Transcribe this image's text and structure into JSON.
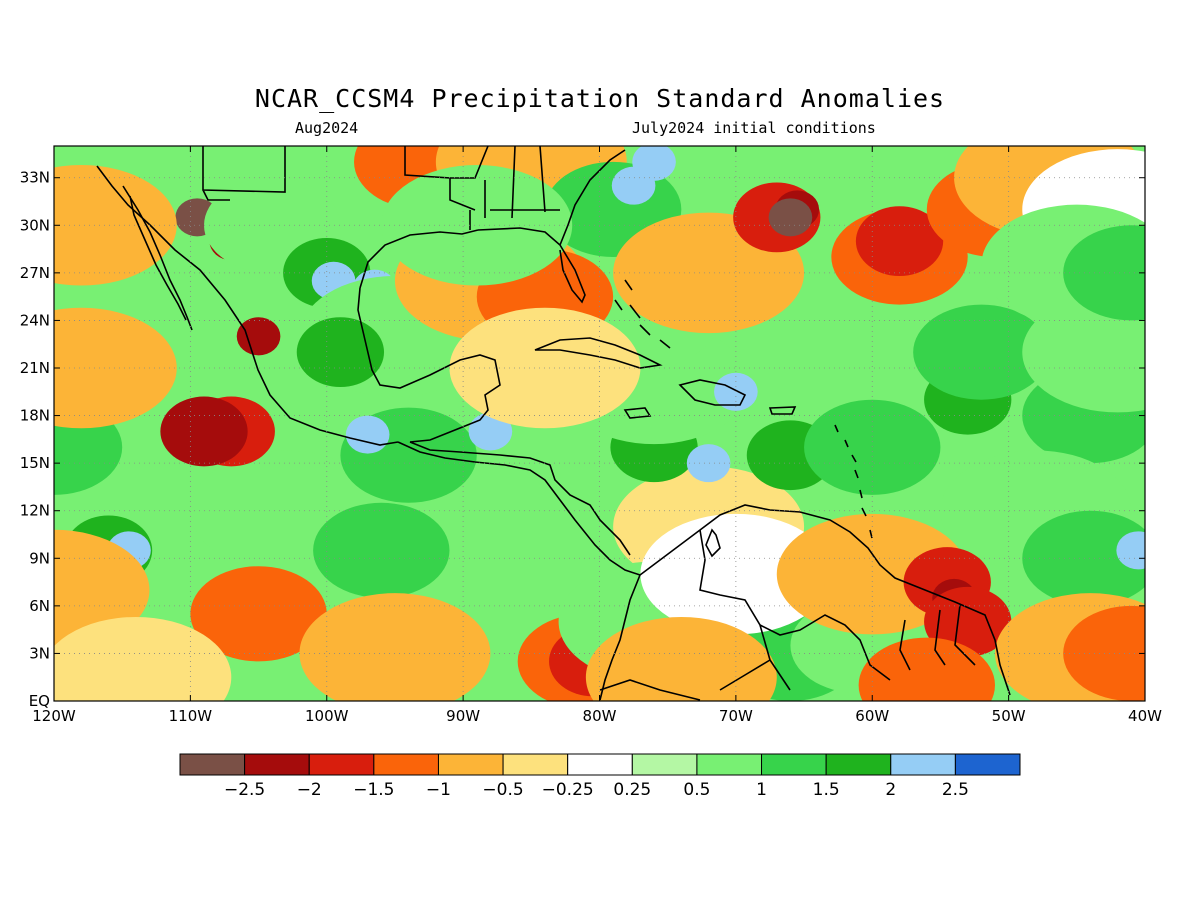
{
  "title": "NCAR_CCSM4 Precipitation Standard Anomalies",
  "subtitle_left": "Aug2024",
  "subtitle_right": "July2024 initial conditions",
  "map": {
    "lon_range": [
      -120,
      -40
    ],
    "lat_range": [
      0,
      35
    ],
    "lat_ticks": [
      {
        "lat": 33,
        "label": "33N"
      },
      {
        "lat": 30,
        "label": "30N"
      },
      {
        "lat": 27,
        "label": "27N"
      },
      {
        "lat": 24,
        "label": "24N"
      },
      {
        "lat": 21,
        "label": "21N"
      },
      {
        "lat": 18,
        "label": "18N"
      },
      {
        "lat": 15,
        "label": "15N"
      },
      {
        "lat": 12,
        "label": "12N"
      },
      {
        "lat": 9,
        "label": "9N"
      },
      {
        "lat": 6,
        "label": "6N"
      },
      {
        "lat": 3,
        "label": "3N"
      },
      {
        "lat": 0,
        "label": "EQ"
      }
    ],
    "lon_ticks": [
      {
        "lon": -120,
        "label": "120W"
      },
      {
        "lon": -110,
        "label": "110W"
      },
      {
        "lon": -100,
        "label": "100W"
      },
      {
        "lon": -90,
        "label": "90W"
      },
      {
        "lon": -80,
        "label": "80W"
      },
      {
        "lon": -70,
        "label": "70W"
      },
      {
        "lon": -60,
        "label": "60W"
      },
      {
        "lon": -50,
        "label": "50W"
      },
      {
        "lon": -40,
        "label": "40W"
      }
    ],
    "grid": "dotted",
    "anomaly_regions": [
      {
        "lon": -72,
        "lat": 11,
        "level": -0.3
      },
      {
        "lon": -120,
        "lat": 16,
        "level": 1.2
      },
      {
        "lon": -116,
        "lat": 9.5,
        "level": 1.6
      },
      {
        "lon": -114.5,
        "lat": 9.5,
        "level": 2.3
      },
      {
        "lon": -103,
        "lat": 12,
        "level": 0.9
      },
      {
        "lon": -96,
        "lat": 9.5,
        "level": 1.4
      },
      {
        "lon": -120,
        "lat": 7,
        "level": -0.9
      },
      {
        "lon": -105,
        "lat": 5.5,
        "level": -1.1
      },
      {
        "lon": -114,
        "lat": 1.5,
        "level": -0.4
      },
      {
        "lon": -95,
        "lat": 3,
        "level": -0.7
      },
      {
        "lon": -81,
        "lat": 2.5,
        "level": -1.3
      },
      {
        "lon": -80.5,
        "lat": 2.5,
        "level": -1.7
      },
      {
        "lon": -94,
        "lat": 15.5,
        "level": 1.3
      },
      {
        "lon": -97,
        "lat": 16.8,
        "level": 2.3
      },
      {
        "lon": -88,
        "lat": 17,
        "level": 2.2
      },
      {
        "lon": -76,
        "lat": 16,
        "level": 1.7
      },
      {
        "lon": -72,
        "lat": 15,
        "level": 2.3
      },
      {
        "lon": -66,
        "lat": 15.5,
        "level": 1.6
      },
      {
        "lon": -60,
        "lat": 16,
        "level": 1.3
      },
      {
        "lon": -53,
        "lat": 19,
        "level": 1.6
      },
      {
        "lon": -44,
        "lat": 18,
        "level": 1.2
      },
      {
        "lon": -76,
        "lat": 20,
        "level": 0.9
      },
      {
        "lon": -70,
        "lat": 19.5,
        "level": 2.2
      },
      {
        "lon": -78,
        "lat": 24.5,
        "level": 0.7
      },
      {
        "lon": -52,
        "lat": 22,
        "level": 1.1
      },
      {
        "lon": -42,
        "lat": 22,
        "level": 0.7
      },
      {
        "lon": -48,
        "lat": 12,
        "level": 0.9
      },
      {
        "lon": -44,
        "lat": 9,
        "level": 1.3
      },
      {
        "lon": -40.5,
        "lat": 9.5,
        "level": 2.3
      },
      {
        "lon": -76,
        "lat": 5,
        "level": 0.8
      },
      {
        "lon": -66,
        "lat": 3,
        "level": 1.2
      },
      {
        "lon": -61,
        "lat": 3.5,
        "level": 1.0
      },
      {
        "lon": -70,
        "lat": 8,
        "level": 0.1
      },
      {
        "lon": -60,
        "lat": 8,
        "level": -0.9
      },
      {
        "lon": -54.5,
        "lat": 7.5,
        "level": -1.9
      },
      {
        "lon": -54,
        "lat": 6.5,
        "level": -2.3
      },
      {
        "lon": -53,
        "lat": 5,
        "level": -1.5
      },
      {
        "lon": -56,
        "lat": 1,
        "level": -1.0
      },
      {
        "lon": -44,
        "lat": 3,
        "level": -0.8
      },
      {
        "lon": -41,
        "lat": 3,
        "level": -1.1
      },
      {
        "lon": -74,
        "lat": 1.5,
        "level": -0.7
      },
      {
        "lon": -107,
        "lat": 29,
        "level": -2.4
      },
      {
        "lon": -109.5,
        "lat": 30.5,
        "level": -2.5
      },
      {
        "lon": -105,
        "lat": 23,
        "level": -2.3
      },
      {
        "lon": -107,
        "lat": 17,
        "level": -1.6
      },
      {
        "lon": -109,
        "lat": 17,
        "level": -2.0
      },
      {
        "lon": -118,
        "lat": 21,
        "level": -0.6
      },
      {
        "lon": -118,
        "lat": 30,
        "level": -0.5
      },
      {
        "lon": -104,
        "lat": 30,
        "level": 1.0
      },
      {
        "lon": -100,
        "lat": 27,
        "level": 1.6
      },
      {
        "lon": -99.5,
        "lat": 26.5,
        "level": 2.5
      },
      {
        "lon": -96.5,
        "lat": 26,
        "level": 2.2
      },
      {
        "lon": -95,
        "lat": 23,
        "level": 0.9
      },
      {
        "lon": -99,
        "lat": 22,
        "level": 1.8
      },
      {
        "lon": -88,
        "lat": 26.5,
        "level": -0.6
      },
      {
        "lon": -84,
        "lat": 25.5,
        "level": -1.2
      },
      {
        "lon": -93,
        "lat": 34,
        "level": -1.0
      },
      {
        "lon": -85,
        "lat": 34,
        "level": -0.8
      },
      {
        "lon": -84,
        "lat": 21,
        "level": -0.4
      },
      {
        "lon": -79,
        "lat": 31,
        "level": 1.2
      },
      {
        "lon": -77.5,
        "lat": 32.5,
        "level": 2.2
      },
      {
        "lon": -76,
        "lat": 34,
        "level": 2.5
      },
      {
        "lon": -89,
        "lat": 30,
        "level": 0.6
      },
      {
        "lon": -72,
        "lat": 27,
        "level": -0.6
      },
      {
        "lon": -67,
        "lat": 30.5,
        "level": -1.6
      },
      {
        "lon": -65.5,
        "lat": 31,
        "level": -2.1
      },
      {
        "lon": -66,
        "lat": 30.5,
        "level": -2.5
      },
      {
        "lon": -58,
        "lat": 28,
        "level": -1.3
      },
      {
        "lon": -58,
        "lat": 29,
        "level": -1.7
      },
      {
        "lon": -51,
        "lat": 31,
        "level": -1.3
      },
      {
        "lon": -49.5,
        "lat": 32,
        "level": -1.6
      },
      {
        "lon": -47,
        "lat": 33,
        "level": -0.5
      },
      {
        "lon": -42,
        "lat": 31,
        "level": 0.2
      },
      {
        "lon": -45,
        "lat": 27.5,
        "level": 0.6
      },
      {
        "lon": -41,
        "lat": 27,
        "level": 1.2
      }
    ]
  },
  "colorbar": {
    "colors": [
      "#7a5046",
      "#a50c0c",
      "#d81e0d",
      "#fa640a",
      "#fcb437",
      "#fde17d",
      "#ffffff",
      "#b4f7a4",
      "#78f073",
      "#37d34b",
      "#1fb31e",
      "#95cdf5",
      "#1d64d0"
    ],
    "labels": [
      "−2.5",
      "−2",
      "−1.5",
      "−1",
      "−0.5",
      "−0.25",
      "0.25",
      "0.5",
      "1",
      "1.5",
      "2",
      "2.5"
    ],
    "thresholds": [
      -2.5,
      -2,
      -1.5,
      -1,
      -0.5,
      -0.25,
      0.25,
      0.5,
      1,
      1.5,
      2,
      2.5
    ]
  }
}
